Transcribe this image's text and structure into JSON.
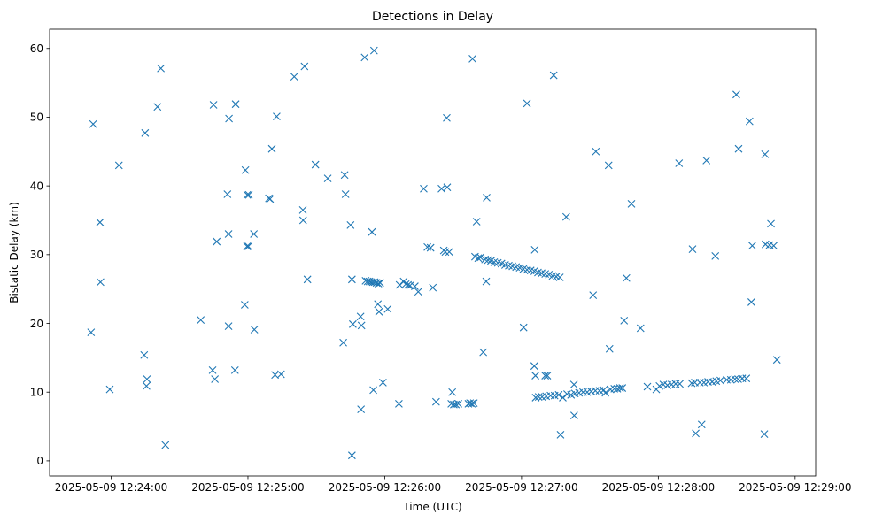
{
  "chart_data": {
    "type": "scatter",
    "title": "Detections in Delay",
    "xlabel": "Time (UTC)",
    "ylabel": "Bistatic Delay (km)",
    "x_unit": "seconds after 2025-05-09 12:24:00",
    "xlim": [
      -27,
      309
    ],
    "ylim": [
      -2.2,
      62.8
    ],
    "xticks": [
      {
        "value": 0,
        "label": "2025-05-09 12:24:00"
      },
      {
        "value": 60,
        "label": "2025-05-09 12:25:00"
      },
      {
        "value": 120,
        "label": "2025-05-09 12:26:00"
      },
      {
        "value": 180,
        "label": "2025-05-09 12:27:00"
      },
      {
        "value": 240,
        "label": "2025-05-09 12:28:00"
      },
      {
        "value": 300,
        "label": "2025-05-09 12:29:00"
      }
    ],
    "yticks": [
      0,
      10,
      20,
      30,
      40,
      50,
      60
    ],
    "grid": false,
    "marker": "x",
    "color": "#1f77b4",
    "series": [
      {
        "name": "detections",
        "points": [
          [
            -8.8,
            18.7
          ],
          [
            -7.9,
            49.0
          ],
          [
            -4.9,
            34.7
          ],
          [
            -4.7,
            26.0
          ],
          [
            -0.6,
            10.4
          ],
          [
            3.4,
            43.0
          ],
          [
            14.5,
            15.4
          ],
          [
            14.9,
            47.7
          ],
          [
            15.5,
            10.9
          ],
          [
            15.7,
            11.9
          ],
          [
            20.3,
            51.5
          ],
          [
            21.8,
            57.1
          ],
          [
            23.8,
            2.3
          ],
          [
            39.3,
            20.5
          ],
          [
            44.5,
            13.2
          ],
          [
            44.9,
            51.8
          ],
          [
            45.5,
            11.9
          ],
          [
            46.3,
            31.9
          ],
          [
            51.0,
            38.8
          ],
          [
            51.5,
            19.6
          ],
          [
            51.5,
            33.0
          ],
          [
            51.7,
            49.8
          ],
          [
            54.3,
            13.2
          ],
          [
            54.6,
            51.9
          ],
          [
            58.6,
            22.7
          ],
          [
            58.9,
            42.3
          ],
          [
            59.6,
            31.2
          ],
          [
            59.7,
            38.7
          ],
          [
            60.2,
            31.2
          ],
          [
            60.4,
            38.7
          ],
          [
            62.6,
            33.0
          ],
          [
            62.8,
            19.1
          ],
          [
            69.2,
            38.2
          ],
          [
            69.7,
            38.1
          ],
          [
            70.5,
            45.4
          ],
          [
            71.9,
            12.5
          ],
          [
            72.6,
            50.1
          ],
          [
            74.5,
            12.6
          ],
          [
            80.3,
            55.9
          ],
          [
            84.1,
            36.5
          ],
          [
            84.2,
            35.0
          ],
          [
            84.8,
            57.4
          ],
          [
            86.1,
            26.4
          ],
          [
            89.6,
            43.1
          ],
          [
            95.0,
            41.1
          ],
          [
            101.8,
            17.2
          ],
          [
            102.4,
            41.6
          ],
          [
            102.8,
            38.8
          ],
          [
            105.0,
            34.3
          ],
          [
            105.6,
            0.8
          ],
          [
            105.6,
            26.4
          ],
          [
            106.0,
            19.9
          ],
          [
            109.4,
            21.0
          ],
          [
            109.6,
            7.5
          ],
          [
            109.8,
            19.7
          ],
          [
            111.2,
            58.7
          ],
          [
            111.6,
            26.2
          ],
          [
            112.5,
            26.1
          ],
          [
            113.3,
            26.1
          ],
          [
            114.0,
            26.0
          ],
          [
            114.8,
            26.0
          ],
          [
            115.6,
            26.0
          ],
          [
            116.4,
            25.9
          ],
          [
            117.2,
            25.8
          ],
          [
            118.0,
            25.9
          ],
          [
            114.4,
            33.3
          ],
          [
            115.0,
            10.3
          ],
          [
            115.3,
            59.7
          ],
          [
            117.0,
            22.8
          ],
          [
            117.5,
            21.7
          ],
          [
            119.2,
            11.4
          ],
          [
            121.3,
            22.1
          ],
          [
            126.2,
            8.3
          ],
          [
            126.5,
            25.6
          ],
          [
            128.3,
            26.1
          ],
          [
            129.2,
            25.7
          ],
          [
            130.2,
            25.6
          ],
          [
            131.1,
            25.5
          ],
          [
            133.2,
            25.4
          ],
          [
            134.7,
            24.6
          ],
          [
            137.1,
            39.6
          ],
          [
            138.7,
            31.1
          ],
          [
            140.1,
            31.0
          ],
          [
            141.1,
            25.2
          ],
          [
            142.5,
            8.6
          ],
          [
            144.9,
            39.6
          ],
          [
            145.9,
            30.6
          ],
          [
            146.6,
            30.4
          ],
          [
            147.2,
            49.9
          ],
          [
            147.4,
            39.8
          ],
          [
            148.3,
            30.4
          ],
          [
            149.2,
            8.3
          ],
          [
            149.6,
            10.0
          ],
          [
            150.3,
            8.2
          ],
          [
            151.2,
            8.2
          ],
          [
            152.3,
            8.3
          ],
          [
            156.7,
            8.3
          ],
          [
            157.4,
            8.4
          ],
          [
            158.2,
            8.3
          ],
          [
            159.1,
            8.4
          ],
          [
            158.5,
            58.5
          ],
          [
            159.6,
            29.7
          ],
          [
            160.3,
            34.8
          ],
          [
            161.0,
            29.5
          ],
          [
            162.0,
            29.6
          ],
          [
            163.2,
            15.8
          ],
          [
            164.0,
            29.3
          ],
          [
            164.5,
            26.1
          ],
          [
            164.7,
            38.3
          ],
          [
            165.3,
            29.2
          ],
          [
            166.6,
            29.1
          ],
          [
            168.0,
            28.9
          ],
          [
            169.6,
            28.8
          ],
          [
            171.2,
            28.7
          ],
          [
            172.8,
            28.5
          ],
          [
            174.4,
            28.4
          ],
          [
            176.0,
            28.3
          ],
          [
            177.6,
            28.2
          ],
          [
            179.2,
            28.1
          ],
          [
            180.8,
            27.9
          ],
          [
            182.4,
            27.8
          ],
          [
            184.0,
            27.7
          ],
          [
            185.6,
            27.6
          ],
          [
            187.2,
            27.4
          ],
          [
            188.8,
            27.3
          ],
          [
            190.4,
            27.2
          ],
          [
            192.0,
            27.1
          ],
          [
            193.6,
            26.9
          ],
          [
            195.2,
            26.8
          ],
          [
            196.8,
            26.7
          ],
          [
            180.9,
            19.4
          ],
          [
            182.4,
            52.0
          ],
          [
            185.6,
            13.8
          ],
          [
            185.8,
            30.7
          ],
          [
            186.1,
            12.4
          ],
          [
            186.2,
            9.2
          ],
          [
            187.5,
            9.3
          ],
          [
            189.0,
            9.3
          ],
          [
            190.4,
            12.4
          ],
          [
            190.8,
            9.4
          ],
          [
            191.3,
            12.4
          ],
          [
            192.7,
            9.5
          ],
          [
            194.1,
            56.1
          ],
          [
            194.5,
            9.5
          ],
          [
            196.3,
            9.6
          ],
          [
            197.1,
            3.8
          ],
          [
            198.1,
            9.2
          ],
          [
            199.6,
            35.5
          ],
          [
            200.0,
            9.7
          ],
          [
            201.7,
            9.6
          ],
          [
            203.0,
            11.1
          ],
          [
            203.1,
            6.6
          ],
          [
            203.4,
            9.8
          ],
          [
            205.2,
            9.9
          ],
          [
            207.0,
            10.0
          ],
          [
            208.8,
            10.0
          ],
          [
            210.6,
            10.1
          ],
          [
            211.4,
            24.1
          ],
          [
            212.4,
            10.2
          ],
          [
            212.6,
            45.0
          ],
          [
            214.2,
            10.2
          ],
          [
            216.0,
            10.3
          ],
          [
            216.8,
            9.9
          ],
          [
            218.2,
            43.0
          ],
          [
            218.6,
            16.3
          ],
          [
            219.0,
            10.4
          ],
          [
            220.7,
            10.5
          ],
          [
            222.0,
            10.5
          ],
          [
            223.2,
            10.6
          ],
          [
            224.2,
            10.6
          ],
          [
            225.0,
            20.4
          ],
          [
            226.0,
            26.6
          ],
          [
            228.2,
            37.4
          ],
          [
            232.2,
            19.3
          ],
          [
            235.2,
            10.8
          ],
          [
            239.1,
            10.4
          ],
          [
            240.5,
            10.9
          ],
          [
            242.2,
            11.1
          ],
          [
            244.0,
            11.0
          ],
          [
            245.8,
            11.1
          ],
          [
            247.6,
            11.2
          ],
          [
            249.1,
            43.3
          ],
          [
            249.4,
            11.2
          ],
          [
            254.6,
            11.3
          ],
          [
            255.0,
            30.8
          ],
          [
            256.0,
            11.4
          ],
          [
            256.4,
            4.0
          ],
          [
            258.2,
            11.4
          ],
          [
            259.0,
            5.3
          ],
          [
            260.0,
            11.4
          ],
          [
            261.1,
            43.7
          ],
          [
            261.8,
            11.5
          ],
          [
            263.6,
            11.5
          ],
          [
            265.0,
            29.8
          ],
          [
            265.4,
            11.6
          ],
          [
            267.2,
            11.7
          ],
          [
            270.0,
            11.8
          ],
          [
            271.8,
            11.8
          ],
          [
            273.6,
            11.9
          ],
          [
            274.2,
            53.3
          ],
          [
            275.0,
            11.9
          ],
          [
            275.2,
            45.4
          ],
          [
            276.8,
            12.0
          ],
          [
            278.6,
            12.0
          ],
          [
            280.0,
            49.4
          ],
          [
            280.8,
            23.1
          ],
          [
            281.2,
            31.3
          ],
          [
            286.5,
            3.9
          ],
          [
            286.8,
            44.6
          ],
          [
            287.0,
            31.5
          ],
          [
            288.8,
            31.4
          ],
          [
            289.4,
            34.5
          ],
          [
            290.6,
            31.3
          ],
          [
            292.0,
            14.7
          ]
        ]
      }
    ]
  }
}
